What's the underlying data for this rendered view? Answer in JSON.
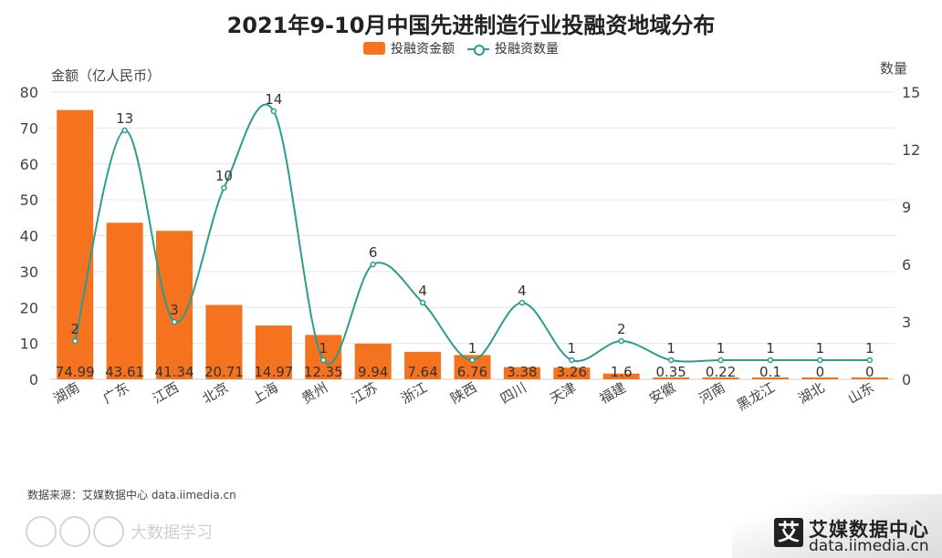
{
  "chart_data": {
    "type": "bar",
    "title": "2021年9-10月中国先进制造行业投融资地域分布",
    "legend": [
      "投融资金额",
      "投融资数量"
    ],
    "y_left_label": "金额（亿人民币）",
    "y_right_label": "数量",
    "categories": [
      "湖南",
      "广东",
      "江西",
      "北京",
      "上海",
      "贵州",
      "江苏",
      "浙江",
      "陕西",
      "四川",
      "天津",
      "福建",
      "安徽",
      "河南",
      "黑龙江",
      "湖北",
      "山东"
    ],
    "series": [
      {
        "name": "投融资金额",
        "type": "bar",
        "axis": "left",
        "values": [
          74.99,
          43.61,
          41.34,
          20.71,
          14.97,
          12.35,
          9.94,
          7.64,
          6.76,
          3.38,
          3.26,
          1.6,
          0.35,
          0.22,
          0.1,
          0,
          0
        ]
      },
      {
        "name": "投融资数量",
        "type": "line",
        "axis": "right",
        "values": [
          2,
          13,
          3,
          10,
          14,
          1,
          6,
          4,
          1,
          4,
          1,
          2,
          1,
          1,
          1,
          1,
          1
        ]
      }
    ],
    "y_left_ticks": [
      0,
      10,
      20,
      30,
      40,
      50,
      60,
      70,
      80
    ],
    "y_right_ticks": [
      0,
      3,
      6,
      9,
      12,
      15
    ],
    "ylim_left": [
      0,
      80
    ],
    "ylim_right": [
      0,
      15
    ],
    "grid": true,
    "colors": {
      "bar": "#f5731e",
      "line": "#2a9d8f"
    }
  },
  "source": "数据来源：艾媒数据中心 data.iimedia.cn",
  "brand": {
    "icon": "艾",
    "name": "艾媒数据中心",
    "url": "data.iimedia.cn"
  },
  "watermark": "大数据学习"
}
